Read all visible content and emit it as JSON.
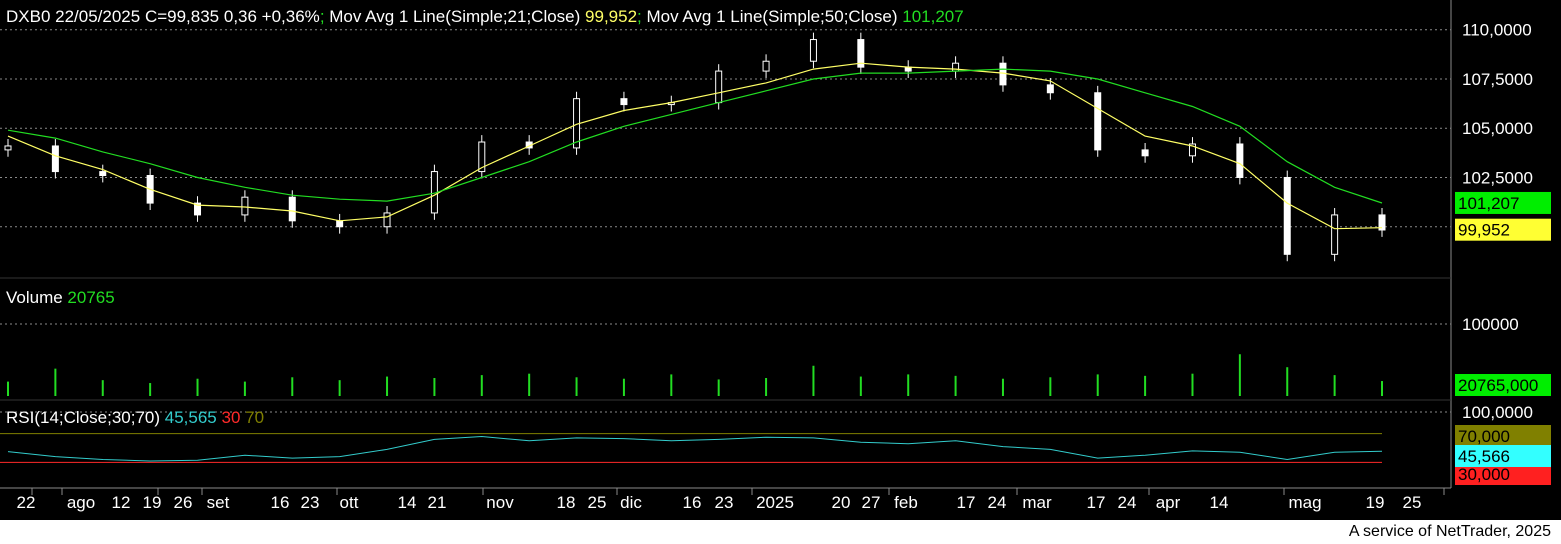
{
  "price_panel": {
    "legend": {
      "symbol_info": "DXB0 22/05/2025 C=99,835 0,36 +0,36%",
      "sep1": ";",
      "ma21_label": " Mov Avg 1 Line(Simple;21;Close)",
      "ma21_value": " 99,952",
      "sep2": ";",
      "ma50_label": " Mov Avg 1 Line(Simple;50;Close)",
      "ma50_value": " 101,207"
    },
    "y_ticks": [
      "110,0000",
      "107,5000",
      "105,0000",
      "102,5000"
    ],
    "badges": {
      "ma50": "101,207",
      "ma21": "99,952"
    }
  },
  "volume_panel": {
    "legend_label": "Volume",
    "legend_value": " 20765",
    "y_tick": "100000",
    "badge": "20765,000"
  },
  "rsi_panel": {
    "legend_label": "RSI(14;Close;30;70)",
    "legend_value": " 45,565",
    "legend_low": " 30",
    "legend_high": " 70",
    "y_tick": "100,0000",
    "badges": {
      "high": "70,000",
      "value": "45,566",
      "low": "30,000"
    }
  },
  "x_axis": {
    "labels": [
      "22",
      "ago",
      "12",
      "19",
      "26",
      "set",
      "16",
      "23",
      "ott",
      "14",
      "21",
      "nov",
      "18",
      "25",
      "dic",
      "16",
      "23",
      "2025",
      "20",
      "27",
      "feb",
      "17",
      "24",
      "mar",
      "17",
      "24",
      "apr",
      "14",
      "mag",
      "19",
      "25"
    ]
  },
  "footer": "A service of NetTrader, 2025",
  "colors": {
    "background": "#000000",
    "candle": "#ffffff",
    "ma21": "#ffff66",
    "ma50": "#22dd22",
    "volume": "#22dd22",
    "rsi": "#33cccc",
    "rsi_high": "#808000",
    "rsi_low": "#ff2a2a",
    "grid": "#8a8a8a",
    "badge_ma50": "#00ee00",
    "badge_ma21": "#ffff33",
    "badge_volume": "#00ee00",
    "badge_rsi_value": "#33ffff",
    "badge_rsi_high": "#808000",
    "badge_rsi_low": "#ff2020"
  },
  "chart_data": [
    {
      "type": "candlestick",
      "title": "DXB0 22/05/2025 C=99,835 0,36 +0,36%",
      "ylim": [
        97.5,
        111.0
      ],
      "dates": [
        "22",
        "ago",
        "12",
        "19",
        "26",
        "set",
        "16",
        "23",
        "ott",
        "14",
        "21",
        "nov",
        "18",
        "25",
        "dic",
        "16",
        "23",
        "2025",
        "20",
        "27",
        "feb",
        "17",
        "24",
        "mar",
        "17",
        "24",
        "apr",
        "14",
        "mag",
        "19"
      ],
      "close": [
        104.1,
        102.8,
        102.6,
        101.2,
        100.6,
        101.5,
        100.3,
        100.0,
        100.7,
        102.8,
        104.3,
        104.0,
        106.5,
        106.2,
        106.3,
        107.9,
        108.4,
        109.5,
        108.1,
        107.9,
        108.3,
        107.2,
        106.8,
        103.9,
        103.6,
        104.2,
        102.5,
        98.6,
        100.6,
        99.835
      ],
      "series": [
        {
          "name": "Mov Avg 1 Line(Simple;21;Close)",
          "values": [
            104.6,
            103.6,
            102.9,
            101.9,
            101.1,
            101.0,
            100.8,
            100.3,
            100.5,
            101.6,
            103.0,
            104.1,
            105.2,
            105.9,
            106.3,
            106.8,
            107.3,
            108.0,
            108.3,
            108.1,
            108.0,
            107.8,
            107.4,
            106.0,
            104.6,
            104.1,
            103.2,
            101.2,
            99.9,
            99.952
          ]
        },
        {
          "name": "Mov Avg 1 Line(Simple;50;Close)",
          "values": [
            104.9,
            104.5,
            103.8,
            103.2,
            102.5,
            102.0,
            101.6,
            101.4,
            101.3,
            101.7,
            102.5,
            103.3,
            104.3,
            105.1,
            105.7,
            106.3,
            106.9,
            107.5,
            107.8,
            107.8,
            107.9,
            108.0,
            107.9,
            107.5,
            106.8,
            106.1,
            105.1,
            103.3,
            102.0,
            101.207
          ]
        }
      ]
    },
    {
      "type": "bar",
      "title": "Volume",
      "y_tick": 100000,
      "values": [
        20000,
        38000,
        22000,
        18000,
        24000,
        20000,
        26000,
        22000,
        27000,
        25000,
        29000,
        31000,
        26000,
        24000,
        30000,
        23000,
        25000,
        42000,
        27000,
        30000,
        28000,
        24000,
        26000,
        30000,
        28000,
        31000,
        58000,
        40000,
        29000,
        20765
      ]
    },
    {
      "type": "line",
      "title": "RSI(14;Close;30;70)",
      "ylim": [
        0,
        100
      ],
      "levels": [
        30,
        70
      ],
      "values": [
        45,
        38,
        34,
        32,
        33,
        40,
        36,
        38,
        48,
        62,
        66,
        60,
        64,
        63,
        60,
        62,
        65,
        64,
        58,
        56,
        60,
        52,
        48,
        36,
        40,
        46,
        44,
        34,
        44,
        45.565
      ]
    }
  ]
}
